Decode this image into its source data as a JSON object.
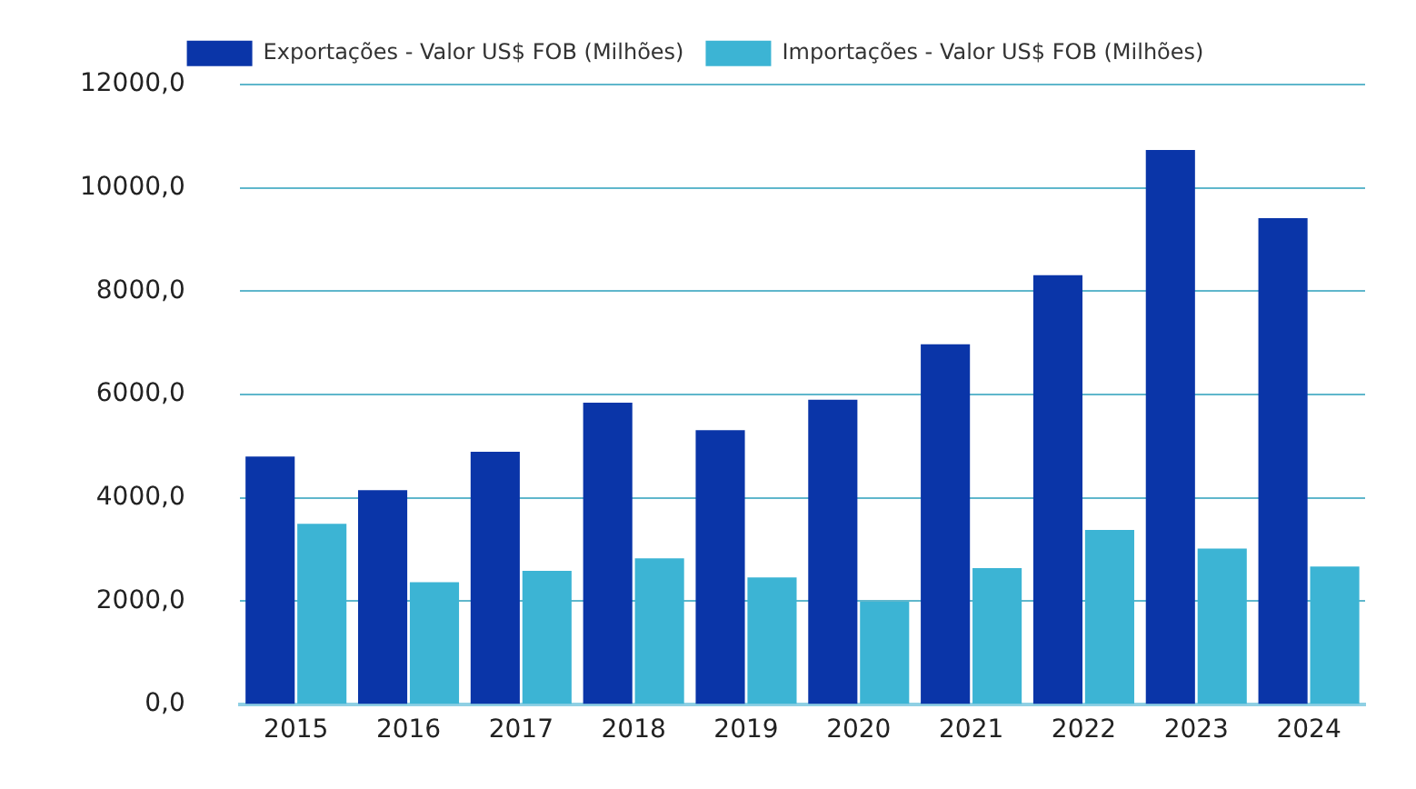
{
  "chart_data": {
    "type": "bar",
    "categories": [
      "2015",
      "2016",
      "2017",
      "2018",
      "2019",
      "2020",
      "2021",
      "2022",
      "2023",
      "2024"
    ],
    "series": [
      {
        "name": "Exportações - Valor US$ FOB (Milhões)",
        "color": "#0a35a8",
        "values": [
          4800,
          4150,
          4890,
          5840,
          5310,
          5900,
          6970,
          8310,
          10730,
          9410
        ]
      },
      {
        "name": "Importações - Valor US$ FOB (Milhões)",
        "color": "#3cb4d4",
        "values": [
          3500,
          2370,
          2590,
          2830,
          2460,
          1990,
          2640,
          3380,
          3020,
          2670
        ]
      }
    ],
    "ylim": [
      0,
      12000
    ],
    "yticks": [
      {
        "value": 0,
        "label": "0,0"
      },
      {
        "value": 2000,
        "label": "2000,0"
      },
      {
        "value": 4000,
        "label": "4000,0"
      },
      {
        "value": 6000,
        "label": "6000,0"
      },
      {
        "value": 8000,
        "label": "8000,0"
      },
      {
        "value": 10000,
        "label": "10000,0"
      },
      {
        "value": 12000,
        "label": "12000,0"
      }
    ],
    "grid": "y",
    "legend": "top"
  }
}
